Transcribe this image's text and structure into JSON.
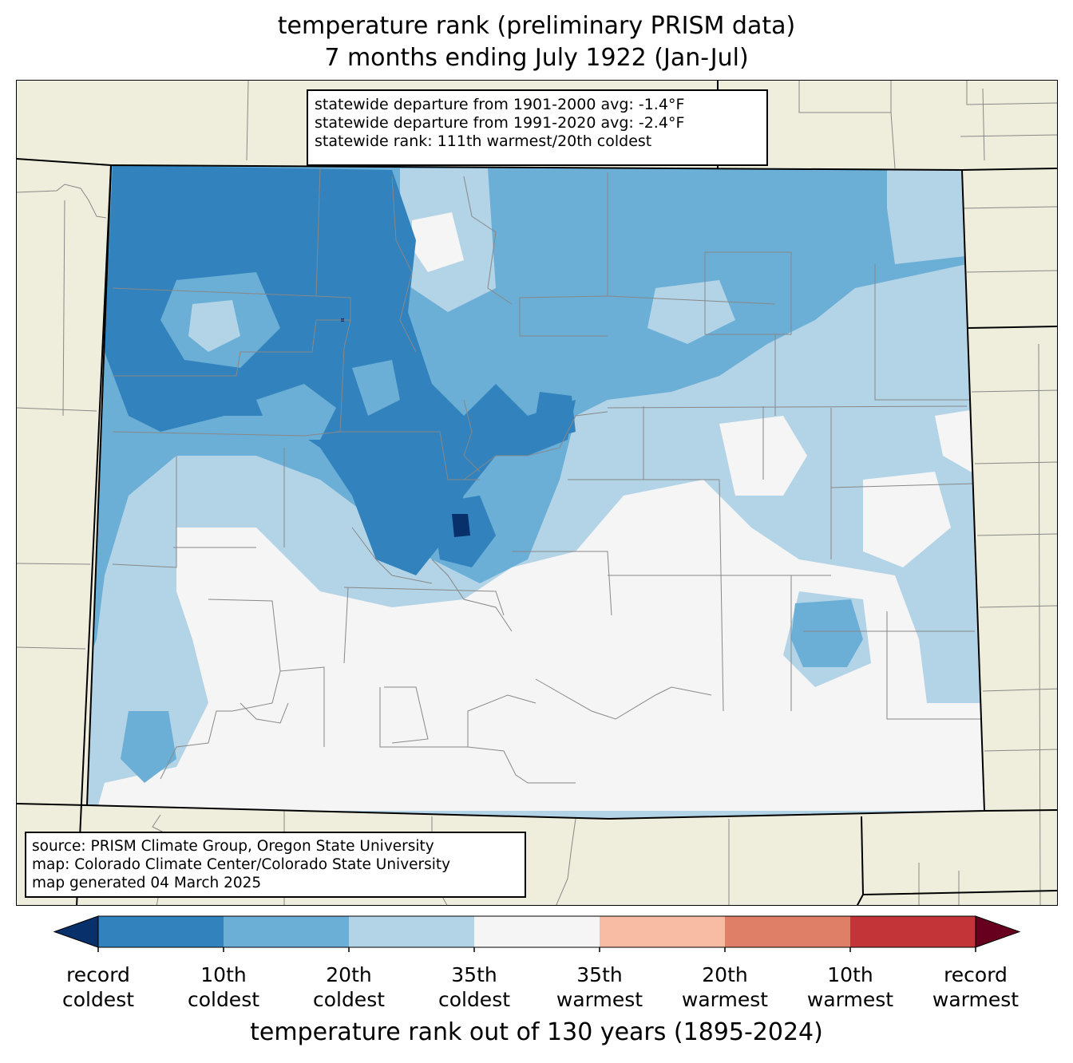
{
  "title": {
    "line1": "temperature rank (preliminary PRISM data)",
    "line2": "7 months ending July 1922 (Jan-Jul)"
  },
  "stats_box": {
    "lines": [
      "statewide departure from 1901-2000 avg: -1.4°F",
      "statewide departure from 1991-2020 avg: -2.4°F",
      "statewide rank: 111th warmest/20th coldest"
    ]
  },
  "source_box": {
    "lines": [
      "source: PRISM Climate Group, Oregon State University",
      "map: Colorado Climate Center/Colorado State University",
      "map generated 04 March 2025"
    ]
  },
  "colorbar": {
    "colors": [
      "#08306b",
      "#3182bd",
      "#6baed6",
      "#b3d4e7",
      "#f5f5f5",
      "#f8bca5",
      "#e07f67",
      "#c23438",
      "#67001f"
    ],
    "ticks": [
      {
        "line1": "record",
        "line2": "coldest"
      },
      {
        "line1": "10th",
        "line2": "coldest"
      },
      {
        "line1": "20th",
        "line2": "coldest"
      },
      {
        "line1": "35th",
        "line2": "coldest"
      },
      {
        "line1": "35th",
        "line2": "warmest"
      },
      {
        "line1": "20th",
        "line2": "warmest"
      },
      {
        "line1": "10th",
        "line2": "warmest"
      },
      {
        "line1": "record",
        "line2": "warmest"
      }
    ],
    "axis_label": "temperature rank out of 130 years (1895-2024)"
  },
  "map": {
    "background_color": "#efeedd",
    "state": "Colorado"
  }
}
